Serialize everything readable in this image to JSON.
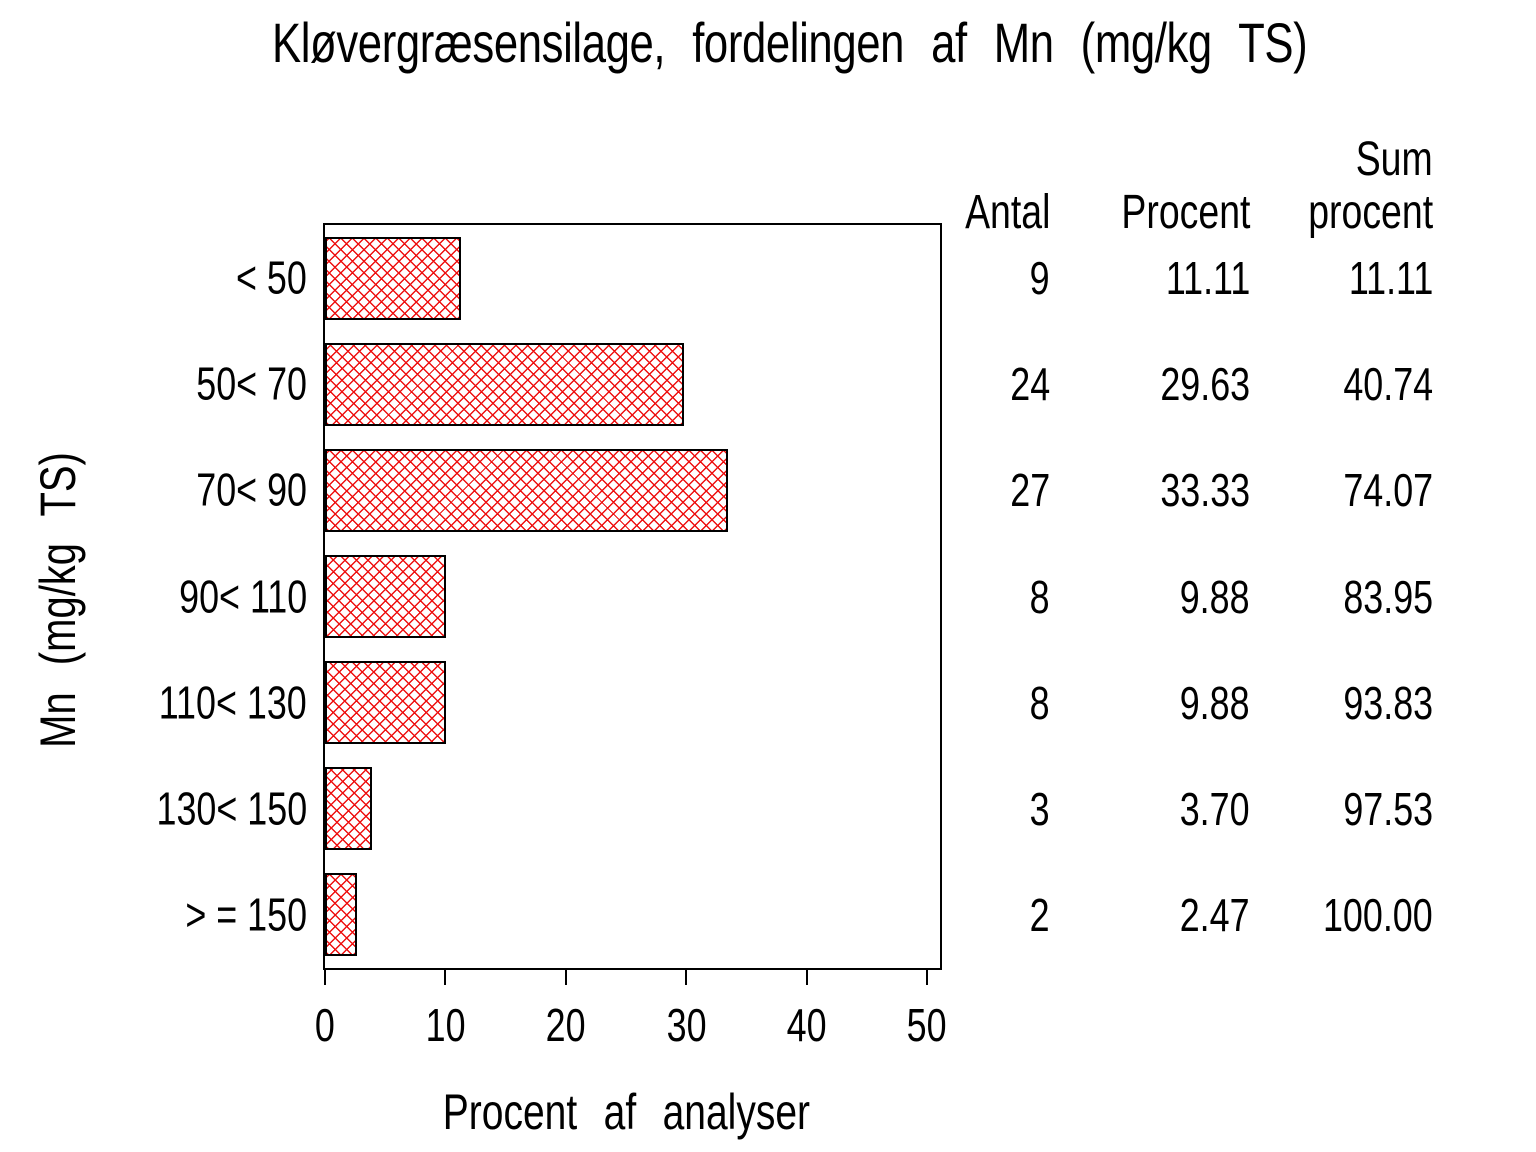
{
  "chart_data": {
    "type": "bar",
    "orientation": "horizontal",
    "title": "Kløvergræsensilage, fordelingen af Mn (mg/kg TS)",
    "xlabel": "Procent af analyser",
    "ylabel": "Mn (mg/kg TS)",
    "categories": [
      "< 50",
      "50< 70",
      "70< 90",
      "90< 110",
      "110< 130",
      "130< 150",
      "> = 150"
    ],
    "values": [
      11.11,
      29.63,
      33.33,
      9.88,
      9.88,
      3.7,
      2.47
    ],
    "counts": [
      9,
      24,
      27,
      8,
      8,
      3,
      2
    ],
    "cum_percent": [
      11.11,
      40.74,
      74.07,
      83.95,
      93.83,
      97.53,
      100.0
    ],
    "xlim": [
      0,
      50
    ],
    "xticks": [
      0,
      10,
      20,
      30,
      40,
      50
    ],
    "xtick_labels": [
      "0",
      "10",
      "20",
      "30",
      "40",
      "50"
    ],
    "grid": "off",
    "bar_fill": "red-crosshatch",
    "hatch_color": "#ee1010",
    "bar_border_color": "#000000",
    "frame_color": "#000000"
  },
  "table": {
    "header": {
      "antal": "Antal",
      "procent": "Procent",
      "sum_line1": "Sum",
      "sum_line2": "procent"
    },
    "rows": [
      {
        "antal": "9",
        "procent": "11.11",
        "sum": "11.11"
      },
      {
        "antal": "24",
        "procent": "29.63",
        "sum": "40.74"
      },
      {
        "antal": "27",
        "procent": "33.33",
        "sum": "74.07"
      },
      {
        "antal": "8",
        "procent": "9.88",
        "sum": "83.95"
      },
      {
        "antal": "8",
        "procent": "9.88",
        "sum": "93.83"
      },
      {
        "antal": "3",
        "procent": "3.70",
        "sum": "97.53"
      },
      {
        "antal": "2",
        "procent": "2.47",
        "sum": "100.00"
      }
    ]
  }
}
